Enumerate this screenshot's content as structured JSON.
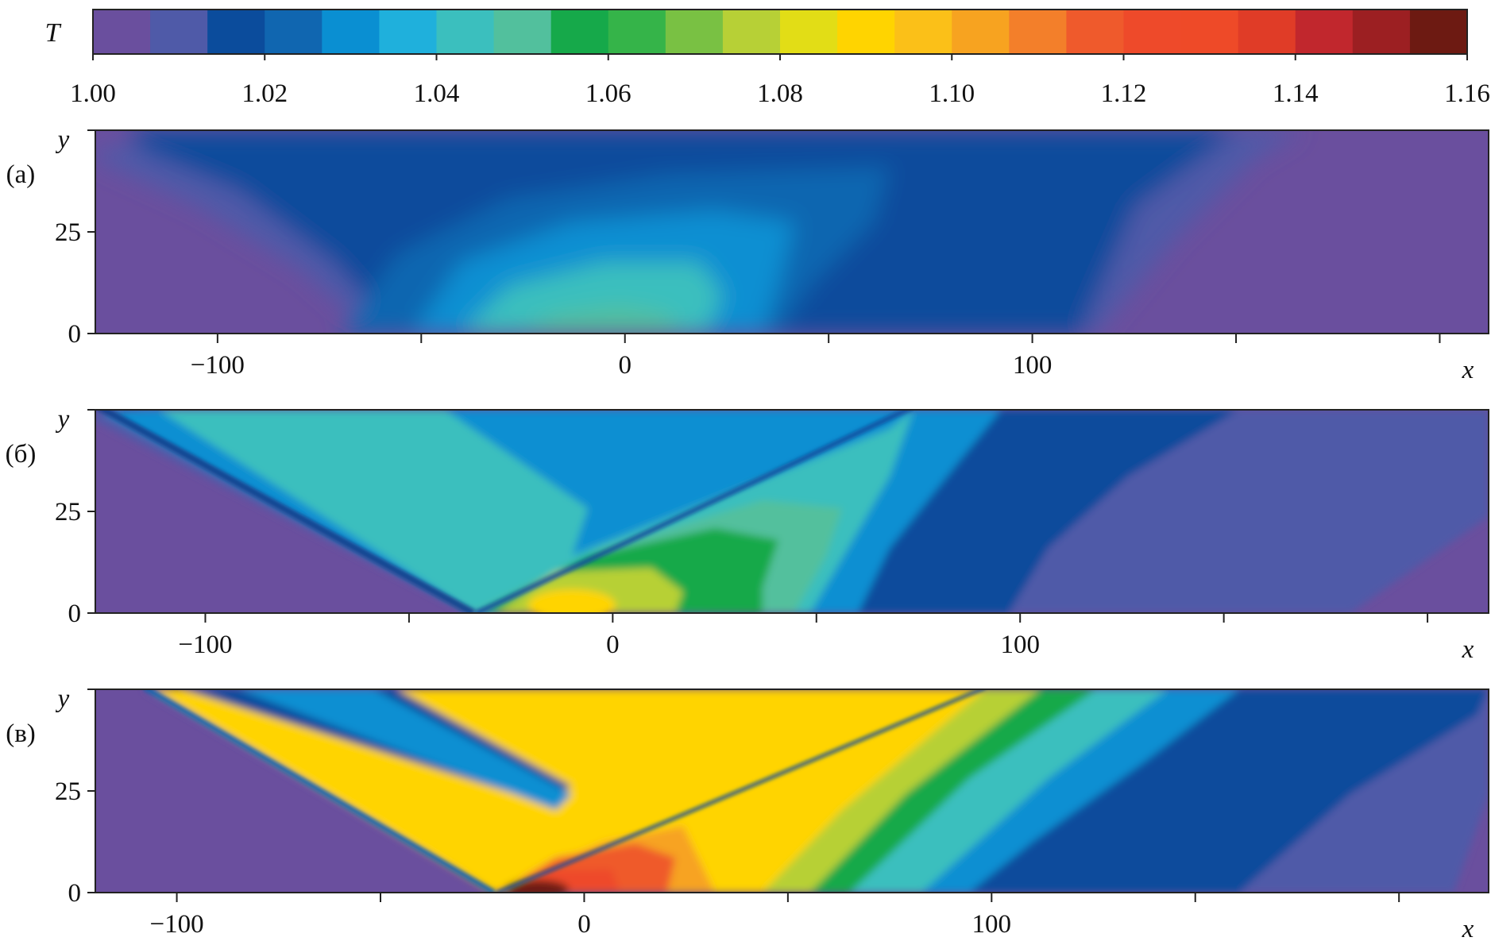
{
  "colorbar": {
    "label": "T",
    "range": [
      1.0,
      1.16
    ],
    "ticks": [
      "1.00",
      "1.02",
      "1.04",
      "1.06",
      "1.08",
      "1.10",
      "1.12",
      "1.14",
      "1.16"
    ],
    "colors": [
      "#6a4f9e",
      "#4f5aa8",
      "#0b4c9c",
      "#1066b0",
      "#0a8fd2",
      "#1fb0dc",
      "#3bbfbe",
      "#52c09d",
      "#16a94a",
      "#35b449",
      "#79c143",
      "#b7d036",
      "#e2dd16",
      "#ffd400",
      "#fbc018",
      "#f7a320",
      "#f37f2a",
      "#ef5a2c",
      "#ee4a2a",
      "#ee4a28",
      "#e03c27",
      "#c1272d",
      "#9c1f22",
      "#6d1a12"
    ]
  },
  "panels": [
    {
      "label": "(а)",
      "x_ticks": [
        "−100",
        "0",
        "100"
      ],
      "y_ticks": [
        "0",
        "25"
      ],
      "xlabel": "x",
      "ylabel": "y"
    },
    {
      "label": "(б)",
      "x_ticks": [
        "−100",
        "0",
        "100"
      ],
      "y_ticks": [
        "0",
        "25"
      ],
      "xlabel": "x",
      "ylabel": "y"
    },
    {
      "label": "(в)",
      "x_ticks": [
        "−100",
        "0",
        "100"
      ],
      "y_ticks": [
        "0",
        "25"
      ],
      "xlabel": "x",
      "ylabel": "y"
    }
  ],
  "chart_data": [
    {
      "type": "heatmap",
      "quantity": "T",
      "xlabel": "x",
      "ylabel": "y",
      "xlim": [
        -130,
        212
      ],
      "ylim": [
        0,
        50
      ],
      "x_ticks": [
        -100,
        0,
        100
      ],
      "y_ticks": [
        0,
        25
      ],
      "value_range": [
        1.0,
        1.16
      ],
      "peak": {
        "x": -5,
        "y": 0,
        "T": 1.045
      },
      "features": [
        "smooth hot spot near the wall",
        "no visible shock lines"
      ]
    },
    {
      "type": "heatmap",
      "quantity": "T",
      "xlabel": "x",
      "ylabel": "y",
      "xlim": [
        -127,
        215
      ],
      "ylim": [
        0,
        50
      ],
      "x_ticks": [
        -100,
        0,
        100
      ],
      "y_ticks": [
        0,
        25
      ],
      "value_range": [
        1.0,
        1.16
      ],
      "peak": {
        "x": -12,
        "y": 0,
        "T": 1.07
      },
      "features": [
        "incident wave from (-127, 50) to (-33, 0)",
        "reflected wave from (-33, 0) to (75, 50)"
      ]
    },
    {
      "type": "heatmap",
      "quantity": "T",
      "xlabel": "x",
      "ylabel": "y",
      "xlim": [
        -120,
        222
      ],
      "ylim": [
        0,
        50
      ],
      "x_ticks": [
        -100,
        0,
        100
      ],
      "y_ticks": [
        0,
        25
      ],
      "value_range": [
        1.0,
        1.16
      ],
      "peak": {
        "x": -12,
        "y": 0,
        "T": 1.16
      },
      "features": [
        "incident wave from (-108, 50) to (-23, 0)",
        "reflected wave from (-23, 0) to (97, 50)"
      ]
    }
  ]
}
